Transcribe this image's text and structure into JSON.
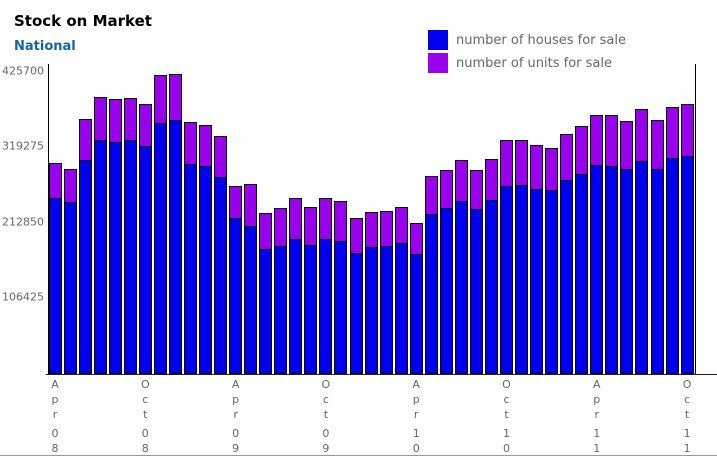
{
  "header": {
    "title": "Stock on Market",
    "subtitle": "National"
  },
  "legend": [
    {
      "label": "number of houses for sale",
      "color": "#0000EE"
    },
    {
      "label": "number of units for sale",
      "color": "#9900EE"
    }
  ],
  "colors": {
    "houses": "#0000EE",
    "units": "#9900EE",
    "bar_outline": "#000000",
    "subtitle_blue": "#1663A3",
    "axis_text_gray": "#666666"
  },
  "chart_data": {
    "type": "bar",
    "stacked": true,
    "title": "Stock on Market",
    "subtitle": "National",
    "grid": false,
    "legend_position": "top-right",
    "ylim": [
      0,
      440000
    ],
    "y_ticks": [
      106425,
      212850,
      319275,
      425700
    ],
    "x_ticks_shown": [
      "Apr 08",
      "Oct 08",
      "Apr 09",
      "Oct 09",
      "Apr 10",
      "Oct 10",
      "Apr 11",
      "Oct 11"
    ],
    "x": [
      "Apr 08",
      "May 08",
      "Jun 08",
      "Jul 08",
      "Aug 08",
      "Sep 08",
      "Oct 08",
      "Nov 08",
      "Dec 08",
      "Jan 09",
      "Feb 09",
      "Mar 09",
      "Apr 09",
      "May 09",
      "Jun 09",
      "Jul 09",
      "Aug 09",
      "Sep 09",
      "Oct 09",
      "Nov 09",
      "Dec 09",
      "Jan 10",
      "Feb 10",
      "Mar 10",
      "Apr 10",
      "May 10",
      "Jun 10",
      "Jul 10",
      "Aug 10",
      "Sep 10",
      "Oct 10",
      "Nov 10",
      "Dec 10",
      "Jan 11",
      "Feb 11",
      "Mar 11",
      "Apr 11",
      "May 11",
      "Jun 11",
      "Jul 11",
      "Aug 11",
      "Sep 11",
      "Oct 11"
    ],
    "series": [
      {
        "name": "number of houses for sale",
        "color": "#0000EE",
        "values": [
          247000,
          242000,
          301500,
          329000,
          326000,
          330000,
          320500,
          353500,
          357000,
          295000,
          293000,
          277500,
          219000,
          208500,
          176000,
          180500,
          190000,
          182000,
          190000,
          187000,
          170000,
          178500,
          179500,
          184500,
          168500,
          225000,
          233500,
          244000,
          232000,
          245000,
          264000,
          265500,
          260500,
          259500,
          272500,
          282000,
          294000,
          293000,
          289000,
          300000,
          288000,
          303500,
          307000
        ]
      },
      {
        "name": "number of units for sale",
        "color": "#9900EE",
        "values": [
          50000,
          48500,
          58500,
          61500,
          62000,
          60500,
          60500,
          68500,
          65500,
          61000,
          58500,
          58500,
          46500,
          60500,
          51500,
          55500,
          58500,
          55000,
          59500,
          57000,
          51000,
          50000,
          50000,
          52500,
          45500,
          55000,
          55500,
          59500,
          56500,
          58500,
          66500,
          64500,
          63000,
          61000,
          66500,
          69500,
          71500,
          72500,
          69000,
          74000,
          70500,
          72500,
          74500
        ]
      }
    ]
  }
}
